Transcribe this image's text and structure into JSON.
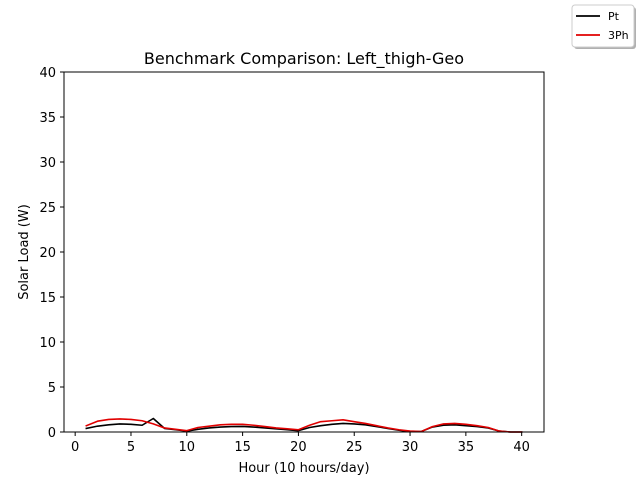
{
  "chart_data": {
    "type": "line",
    "title": "Benchmark Comparison: Left_thigh-Geo",
    "xlabel": "Hour (10 hours/day)",
    "ylabel": "Solar Load (W)",
    "xlim": [
      -1,
      42
    ],
    "ylim": [
      0,
      40
    ],
    "xticks": [
      0,
      5,
      10,
      15,
      20,
      25,
      30,
      35,
      40
    ],
    "yticks": [
      0,
      5,
      10,
      15,
      20,
      25,
      30,
      35,
      40
    ],
    "grid": false,
    "legend_position": "upper-right outside plot",
    "x": [
      1,
      2,
      3,
      4,
      5,
      6,
      7,
      8,
      9,
      10,
      11,
      12,
      13,
      14,
      15,
      16,
      17,
      18,
      19,
      20,
      21,
      22,
      23,
      24,
      25,
      26,
      27,
      28,
      29,
      30,
      31,
      32,
      33,
      34,
      35,
      36,
      37,
      38,
      39,
      40
    ],
    "series": [
      {
        "name": "Pt",
        "color": "#000000",
        "values": [
          0.4,
          0.65,
          0.8,
          0.9,
          0.85,
          0.75,
          1.5,
          0.4,
          0.25,
          0.1,
          0.3,
          0.45,
          0.55,
          0.6,
          0.62,
          0.55,
          0.45,
          0.35,
          0.25,
          0.15,
          0.5,
          0.7,
          0.85,
          0.95,
          0.9,
          0.8,
          0.6,
          0.4,
          0.2,
          0.05,
          0.05,
          0.55,
          0.75,
          0.8,
          0.7,
          0.6,
          0.45,
          0.1,
          0.0,
          0.0
        ]
      },
      {
        "name": "3Ph",
        "color": "#e00000",
        "values": [
          0.7,
          1.2,
          1.4,
          1.45,
          1.4,
          1.25,
          0.9,
          0.45,
          0.3,
          0.15,
          0.5,
          0.65,
          0.8,
          0.85,
          0.85,
          0.75,
          0.6,
          0.45,
          0.35,
          0.25,
          0.75,
          1.15,
          1.25,
          1.35,
          1.15,
          0.95,
          0.7,
          0.45,
          0.25,
          0.1,
          0.05,
          0.6,
          0.9,
          0.95,
          0.85,
          0.7,
          0.5,
          0.1,
          0.0,
          0.0
        ]
      }
    ]
  }
}
